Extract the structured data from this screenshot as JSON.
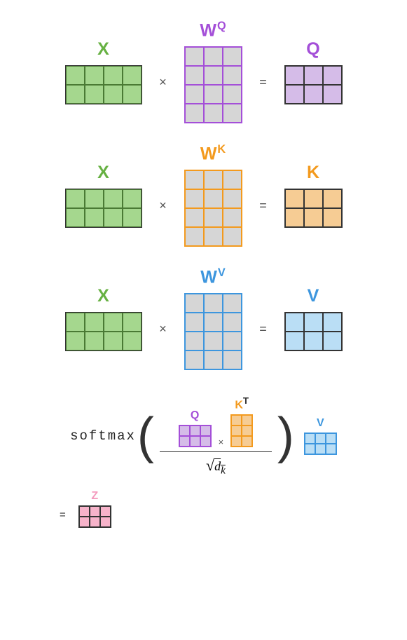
{
  "colors": {
    "X": "#67b143",
    "Q": "#a44fd8",
    "K": "#f39a1e",
    "V": "#3d96de",
    "Z": "#f49abd",
    "x_fill": "#a5d78e",
    "x_stroke": "#4a7a34",
    "wq_fill": "#d6d6d6",
    "wq_stroke": "#a44fd8",
    "q_fill": "#d5bce8",
    "q_stroke": "#333333",
    "wk_stroke": "#f39a1e",
    "k_fill": "#f6cc94",
    "wv_stroke": "#3d96de",
    "v_fill": "#badef5",
    "z_fill": "#f7b3ca",
    "z_stroke": "#333333",
    "kt_fill": "#f6cc94",
    "kt_stroke": "#f39a1e",
    "mini_q_stroke": "#a44fd8",
    "mini_v_stroke": "#3d96de"
  },
  "labels": {
    "X": "X",
    "WQ_base": "W",
    "WQ_sup": "Q",
    "WK_base": "W",
    "WK_sup": "K",
    "WV_base": "W",
    "WV_sup": "V",
    "Q": "Q",
    "K": "K",
    "V": "V",
    "KT_base": "K",
    "KT_sup": "T",
    "Z": "Z",
    "times": "×",
    "eq": "=",
    "softmax": "softmax",
    "dk": "d",
    "dk_sub": "k"
  },
  "big": {
    "cell_size": 27,
    "X": {
      "rows": 2,
      "cols": 4
    },
    "W": {
      "rows": 4,
      "cols": 3
    },
    "Out": {
      "rows": 2,
      "cols": 3
    },
    "label_fontsize": 25
  },
  "mini": {
    "cell_size": 15,
    "Q": {
      "rows": 2,
      "cols": 3
    },
    "KT": {
      "rows": 3,
      "cols": 2
    },
    "V": {
      "rows": 2,
      "cols": 3
    },
    "Z": {
      "rows": 2,
      "cols": 3
    }
  }
}
